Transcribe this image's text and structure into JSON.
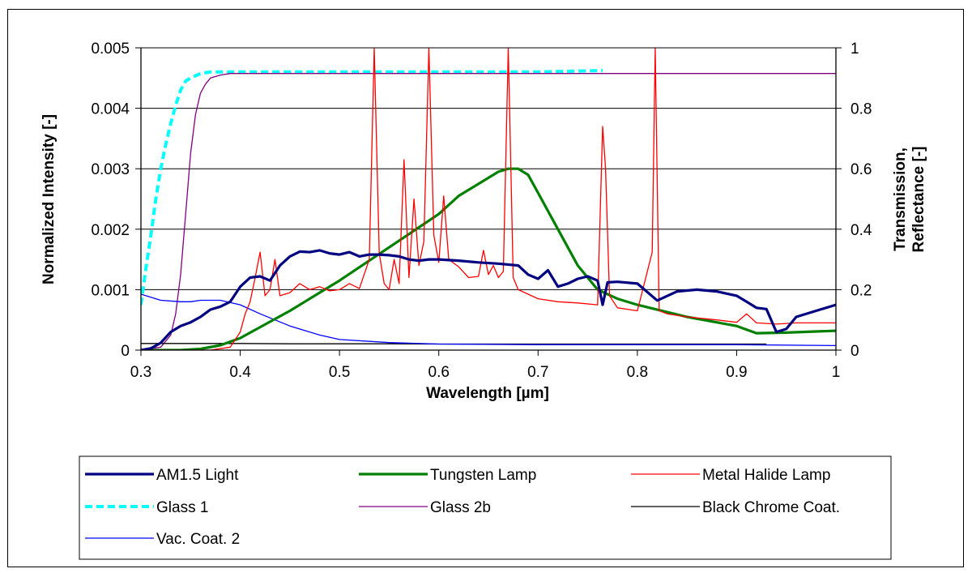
{
  "chart_data": {
    "type": "line",
    "title": "",
    "xlabel": "Wavelength [µm]",
    "ylabel": "Normalized Intensity [-]",
    "y2label_line1": "Transmission,",
    "y2label_line2": "Reflectance [-]",
    "xlim": [
      0.3,
      1.0
    ],
    "ylim": [
      0,
      0.005
    ],
    "y2lim": [
      0,
      1
    ],
    "xticks": [
      "0.3",
      "0.4",
      "0.5",
      "0.6",
      "0.7",
      "0.8",
      "0.9",
      "1"
    ],
    "yticks": [
      "0",
      "0.001",
      "0.002",
      "0.003",
      "0.004",
      "0.005"
    ],
    "y2ticks": [
      "0",
      "0.2",
      "0.4",
      "0.6",
      "0.8",
      "1"
    ],
    "grid": "horizontal",
    "legend_position": "bottom",
    "series": [
      {
        "name": "AM1.5 Light",
        "axis": "left",
        "color": "#000080",
        "style": "thick",
        "x": [
          0.3,
          0.31,
          0.32,
          0.33,
          0.34,
          0.35,
          0.36,
          0.37,
          0.38,
          0.39,
          0.4,
          0.41,
          0.42,
          0.43,
          0.44,
          0.45,
          0.46,
          0.47,
          0.48,
          0.49,
          0.5,
          0.51,
          0.52,
          0.53,
          0.54,
          0.55,
          0.56,
          0.57,
          0.58,
          0.59,
          0.6,
          0.62,
          0.64,
          0.66,
          0.68,
          0.69,
          0.7,
          0.71,
          0.72,
          0.73,
          0.74,
          0.75,
          0.76,
          0.765,
          0.77,
          0.78,
          0.8,
          0.82,
          0.84,
          0.86,
          0.88,
          0.9,
          0.91,
          0.92,
          0.93,
          0.94,
          0.95,
          0.96,
          0.98,
          1.0
        ],
        "y": [
          0.0,
          3e-05,
          0.00012,
          0.0003,
          0.0004,
          0.00046,
          0.00055,
          0.00067,
          0.00072,
          0.0008,
          0.00105,
          0.0012,
          0.00122,
          0.00115,
          0.0014,
          0.00155,
          0.00163,
          0.00162,
          0.00165,
          0.0016,
          0.00158,
          0.00162,
          0.00155,
          0.00158,
          0.00158,
          0.00157,
          0.00155,
          0.0015,
          0.00148,
          0.0015,
          0.0015,
          0.00148,
          0.00145,
          0.00143,
          0.0014,
          0.00125,
          0.00118,
          0.00132,
          0.00105,
          0.0011,
          0.00118,
          0.00122,
          0.00115,
          0.00075,
          0.00112,
          0.00113,
          0.0011,
          0.00082,
          0.00097,
          0.001,
          0.00097,
          0.0009,
          0.0008,
          0.0007,
          0.00068,
          0.0003,
          0.00035,
          0.00055,
          0.00065,
          0.00075
        ]
      },
      {
        "name": "Tungsten Lamp",
        "axis": "left",
        "color": "#008000",
        "style": "thick",
        "x": [
          0.3,
          0.34,
          0.36,
          0.38,
          0.4,
          0.45,
          0.5,
          0.55,
          0.6,
          0.62,
          0.64,
          0.66,
          0.67,
          0.68,
          0.69,
          0.7,
          0.72,
          0.74,
          0.76,
          0.78,
          0.8,
          0.85,
          0.9,
          0.92,
          0.95,
          1.0
        ],
        "y": [
          0.0,
          0.0,
          2e-05,
          8e-05,
          0.0002,
          0.00065,
          0.00115,
          0.0017,
          0.00225,
          0.00255,
          0.00275,
          0.00295,
          0.003,
          0.003,
          0.0029,
          0.0026,
          0.002,
          0.0014,
          0.001,
          0.00085,
          0.00075,
          0.00055,
          0.0004,
          0.00028,
          0.00029,
          0.00032
        ]
      },
      {
        "name": "Metal Halide Lamp",
        "axis": "left",
        "color": "#ff0000",
        "style": "thin",
        "x": [
          0.3,
          0.37,
          0.39,
          0.4,
          0.405,
          0.41,
          0.415,
          0.42,
          0.425,
          0.43,
          0.435,
          0.44,
          0.45,
          0.46,
          0.47,
          0.48,
          0.49,
          0.5,
          0.51,
          0.52,
          0.53,
          0.535,
          0.54,
          0.545,
          0.55,
          0.555,
          0.56,
          0.565,
          0.57,
          0.575,
          0.58,
          0.585,
          0.59,
          0.595,
          0.6,
          0.605,
          0.61,
          0.62,
          0.63,
          0.64,
          0.645,
          0.65,
          0.655,
          0.66,
          0.665,
          0.67,
          0.675,
          0.68,
          0.7,
          0.72,
          0.74,
          0.76,
          0.765,
          0.768,
          0.772,
          0.78,
          0.8,
          0.815,
          0.818,
          0.822,
          0.83,
          0.85,
          0.88,
          0.9,
          0.91,
          0.92,
          0.94,
          0.96,
          1.0
        ],
        "y": [
          0.0,
          0.0,
          5e-05,
          0.0003,
          0.0006,
          0.0008,
          0.0012,
          0.00162,
          0.0009,
          0.001,
          0.0015,
          0.0009,
          0.00095,
          0.0011,
          0.001,
          0.00105,
          0.00098,
          0.001,
          0.0011,
          0.00102,
          0.0015,
          0.005,
          0.0016,
          0.0011,
          0.001,
          0.0015,
          0.0011,
          0.00315,
          0.0012,
          0.0025,
          0.0014,
          0.0018,
          0.005,
          0.0019,
          0.00145,
          0.00255,
          0.0015,
          0.00138,
          0.0012,
          0.00122,
          0.00165,
          0.00125,
          0.0014,
          0.0012,
          0.0013,
          0.005,
          0.0012,
          0.001,
          0.00085,
          0.0008,
          0.00078,
          0.00075,
          0.0037,
          0.003,
          0.0009,
          0.0007,
          0.00065,
          0.00162,
          0.005,
          0.00065,
          0.0006,
          0.00055,
          0.0005,
          0.00046,
          0.0006,
          0.00045,
          0.00043,
          0.00045,
          0.00045
        ]
      },
      {
        "name": "Glass 1",
        "axis": "right",
        "color": "#00ffff",
        "style": "dashed",
        "x": [
          0.3,
          0.305,
          0.31,
          0.315,
          0.32,
          0.325,
          0.33,
          0.335,
          0.34,
          0.345,
          0.35,
          0.36,
          0.37,
          0.38,
          0.4,
          0.5,
          0.6,
          0.7,
          0.765
        ],
        "y": [
          0.15,
          0.27,
          0.38,
          0.5,
          0.6,
          0.68,
          0.75,
          0.81,
          0.86,
          0.89,
          0.9,
          0.915,
          0.92,
          0.92,
          0.92,
          0.92,
          0.92,
          0.92,
          0.925
        ]
      },
      {
        "name": "Glass 2b",
        "axis": "right",
        "color": "#800080",
        "style": "thin",
        "x": [
          0.3,
          0.32,
          0.33,
          0.335,
          0.34,
          0.345,
          0.35,
          0.355,
          0.36,
          0.365,
          0.37,
          0.38,
          0.39,
          0.4,
          0.5,
          0.6,
          0.7,
          0.8,
          0.9,
          1.0
        ],
        "y": [
          0.0,
          0.01,
          0.05,
          0.12,
          0.25,
          0.45,
          0.65,
          0.78,
          0.85,
          0.88,
          0.9,
          0.91,
          0.915,
          0.915,
          0.915,
          0.915,
          0.915,
          0.915,
          0.915,
          0.915
        ]
      },
      {
        "name": "Black Chrome Coat.",
        "axis": "right",
        "color": "#000000",
        "style": "thin",
        "x": [
          0.3,
          0.35,
          0.4,
          0.45,
          0.5,
          0.55,
          0.6,
          0.7,
          0.8,
          0.9,
          0.93
        ],
        "y": [
          0.022,
          0.022,
          0.022,
          0.021,
          0.021,
          0.021,
          0.02,
          0.02,
          0.02,
          0.02,
          0.02
        ]
      },
      {
        "name": "Vac. Coat. 2",
        "axis": "right",
        "color": "#0000ff",
        "style": "thin",
        "x": [
          0.3,
          0.32,
          0.34,
          0.35,
          0.36,
          0.38,
          0.4,
          0.42,
          0.45,
          0.48,
          0.5,
          0.55,
          0.6,
          0.7,
          0.8,
          0.9,
          1.0
        ],
        "y": [
          0.185,
          0.165,
          0.16,
          0.16,
          0.165,
          0.165,
          0.15,
          0.12,
          0.08,
          0.05,
          0.035,
          0.025,
          0.02,
          0.018,
          0.018,
          0.018,
          0.015
        ]
      }
    ]
  }
}
